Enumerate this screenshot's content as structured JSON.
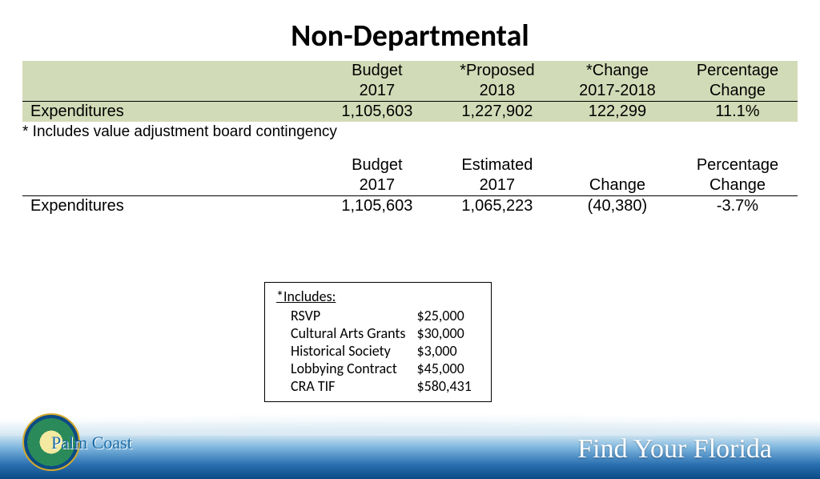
{
  "title": "Non-Departmental",
  "table1": {
    "background": "#d2dbb7",
    "headers": {
      "row1": [
        "",
        "Budget",
        "*Proposed",
        "*Change",
        "Percentage"
      ],
      "row2": [
        "",
        "2017",
        "2018",
        "2017-2018",
        "Change"
      ]
    },
    "row": {
      "label": "Expenditures",
      "budget2017": "1,105,603",
      "proposed2018": "1,227,902",
      "change": "122,299",
      "pct": "11.1%"
    }
  },
  "footnote1": "* Includes value adjustment board contingency",
  "table2": {
    "headers": {
      "row1": [
        "",
        "Budget",
        "Estimated",
        "",
        "Percentage"
      ],
      "row2": [
        "",
        "2017",
        "2017",
        "Change",
        "Change"
      ]
    },
    "row": {
      "label": "Expenditures",
      "budget2017": "1,105,603",
      "estimated2017": "1,065,223",
      "change": "(40,380)",
      "pct": "-3.7%"
    }
  },
  "includes": {
    "title": "*Includes:",
    "items": [
      {
        "label": "RSVP",
        "amount": "$25,000"
      },
      {
        "label": "Cultural Arts Grants",
        "amount": "$30,000"
      },
      {
        "label": "Historical Society",
        "amount": "$3,000"
      },
      {
        "label": "Lobbying Contract",
        "amount": "$45,000"
      },
      {
        "label": "CRA TIF",
        "amount": "$580,431"
      }
    ]
  },
  "footer": {
    "tagline": "Find Your Florida",
    "seal_text": "Palm Coast"
  },
  "colors": {
    "table1_bg": "#d2dbb7",
    "wave_top": "#dcebf4",
    "wave_mid": "#7fb7de",
    "wave_deep": "#0a4b85",
    "text": "#000000"
  }
}
